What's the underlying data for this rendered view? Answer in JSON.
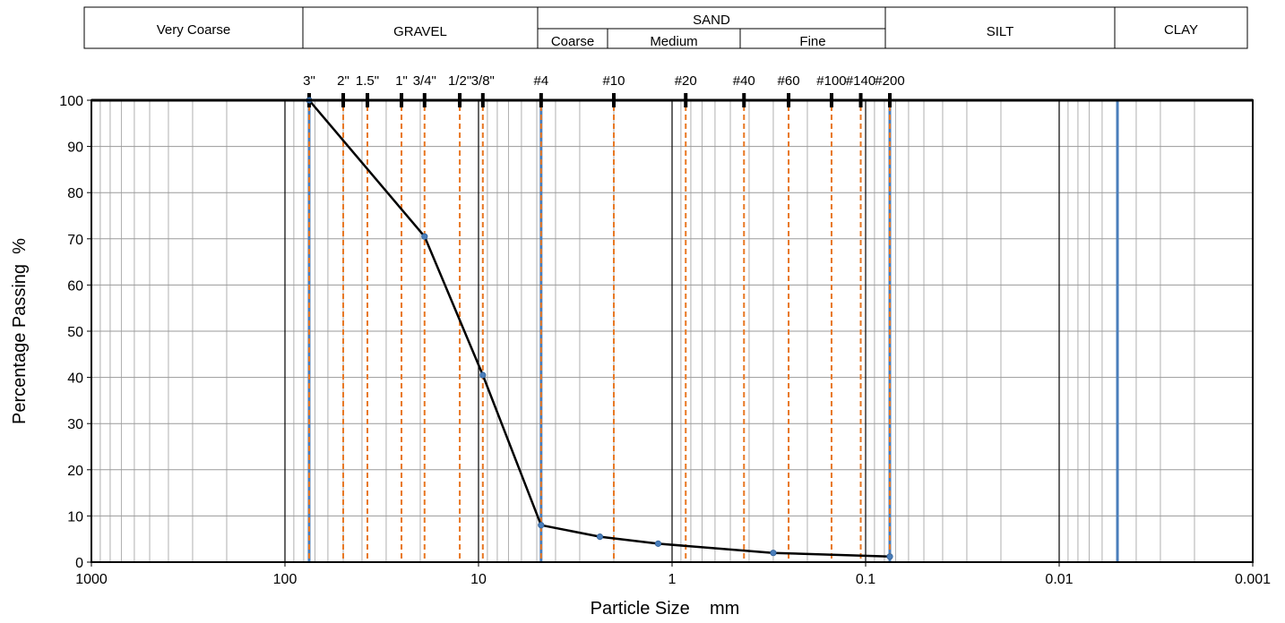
{
  "chart_data": {
    "type": "line",
    "x_scale": "log",
    "x_reversed": true,
    "xlim": [
      1000,
      0.001
    ],
    "ylim": [
      0,
      100
    ],
    "xlabel": "Particle Size    mm",
    "ylabel": "Percentage Passing  %",
    "x_ticks": [
      {
        "value": 1000,
        "label": "1000"
      },
      {
        "value": 100,
        "label": "100"
      },
      {
        "value": 10,
        "label": "10"
      },
      {
        "value": 1,
        "label": "1"
      },
      {
        "value": 0.1,
        "label": "0.1"
      },
      {
        "value": 0.01,
        "label": "0.01"
      },
      {
        "value": 0.001,
        "label": "0.001"
      }
    ],
    "y_ticks": [
      0,
      10,
      20,
      30,
      40,
      50,
      60,
      70,
      80,
      90,
      100
    ],
    "grid": true,
    "series": [
      {
        "color": "#000000",
        "marker_color": "#4a7ebb",
        "x": [
          75,
          19,
          9.5,
          4.75,
          2.36,
          1.18,
          0.3,
          0.075
        ],
        "y": [
          100,
          70.5,
          40.5,
          8,
          5.5,
          4,
          2,
          1.2
        ]
      }
    ],
    "sieves": [
      {
        "label": "3\"",
        "size": 75
      },
      {
        "label": "2\"",
        "size": 50
      },
      {
        "label": "1.5\"",
        "size": 37.5
      },
      {
        "label": "1\"",
        "size": 25
      },
      {
        "label": "3/4\"",
        "size": 19
      },
      {
        "label": "1/2\"",
        "size": 12.5
      },
      {
        "label": "3/8\"",
        "size": 9.5
      },
      {
        "label": "#4",
        "size": 4.75
      },
      {
        "label": "#10",
        "size": 2
      },
      {
        "label": "#20",
        "size": 0.85
      },
      {
        "label": "#40",
        "size": 0.425
      },
      {
        "label": "#60",
        "size": 0.25
      },
      {
        "label": "#100",
        "size": 0.15
      },
      {
        "label": "#140",
        "size": 0.106
      },
      {
        "label": "#200",
        "size": 0.075
      }
    ],
    "boundaries": [
      75,
      4.75,
      0.075,
      0.005
    ],
    "colors": {
      "sieve_line": "#e87722",
      "boundary_line": "#4a7ebb",
      "major_grid": "#000000",
      "minor_grid": "#b0b0b0",
      "curve": "#000000"
    }
  },
  "classification": {
    "very_coarse": "Very Coarse",
    "gravel": "GRAVEL",
    "sand": "SAND",
    "coarse": "Coarse",
    "medium": "Medium",
    "fine": "Fine",
    "silt": "SILT",
    "clay": "CLAY"
  }
}
